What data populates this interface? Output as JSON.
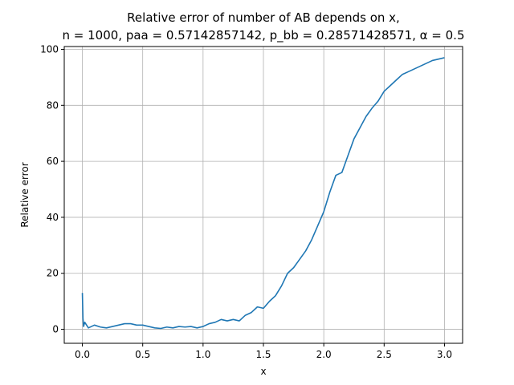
{
  "chart_data": {
    "type": "line",
    "title_line1": "Relative error of number of AB depends on x,",
    "title_line2": "n = 1000, paa = 0.57142857142, p_bb = 0.28571428571, α = 0.5",
    "xlabel": "x",
    "ylabel": "Relative error",
    "xlim": [
      -0.15,
      3.15
    ],
    "ylim": [
      -5,
      101
    ],
    "xticks": [
      0.0,
      0.5,
      1.0,
      1.5,
      2.0,
      2.5,
      3.0
    ],
    "xtick_labels": [
      "0.0",
      "0.5",
      "1.0",
      "1.5",
      "2.0",
      "2.5",
      "3.0"
    ],
    "yticks": [
      0,
      20,
      40,
      60,
      80,
      100
    ],
    "ytick_labels": [
      "0",
      "20",
      "40",
      "60",
      "80",
      "100"
    ],
    "grid": true,
    "series_color": "#1f77b4",
    "x": [
      0.0,
      0.005,
      0.01,
      0.02,
      0.05,
      0.1,
      0.15,
      0.2,
      0.25,
      0.3,
      0.35,
      0.4,
      0.45,
      0.5,
      0.55,
      0.6,
      0.65,
      0.7,
      0.75,
      0.8,
      0.85,
      0.9,
      0.95,
      1.0,
      1.05,
      1.1,
      1.15,
      1.2,
      1.25,
      1.3,
      1.35,
      1.4,
      1.45,
      1.5,
      1.55,
      1.6,
      1.65,
      1.7,
      1.75,
      1.8,
      1.85,
      1.9,
      1.95,
      2.0,
      2.05,
      2.1,
      2.15,
      2.2,
      2.25,
      2.3,
      2.35,
      2.4,
      2.45,
      2.5,
      2.55,
      2.6,
      2.65,
      2.7,
      2.75,
      2.8,
      2.85,
      2.9,
      2.95,
      3.0
    ],
    "y": [
      13.0,
      4.0,
      1.0,
      2.5,
      0.5,
      1.5,
      0.8,
      0.5,
      1.0,
      1.5,
      2.0,
      2.0,
      1.5,
      1.5,
      1.0,
      0.5,
      0.3,
      0.8,
      0.5,
      1.0,
      0.8,
      1.0,
      0.5,
      1.0,
      2.0,
      2.5,
      3.5,
      3.0,
      3.5,
      3.0,
      5.0,
      6.0,
      8.0,
      7.5,
      10.0,
      12.0,
      15.5,
      20.0,
      22.0,
      25.0,
      28.0,
      32.0,
      37.0,
      42.0,
      49.0,
      55.0,
      56.0,
      62.0,
      68.0,
      72.0,
      76.0,
      79.0,
      81.5,
      85.0,
      87.0,
      89.0,
      91.0,
      92.0,
      93.0,
      94.0,
      95.0,
      96.0,
      96.5,
      97.0
    ]
  }
}
